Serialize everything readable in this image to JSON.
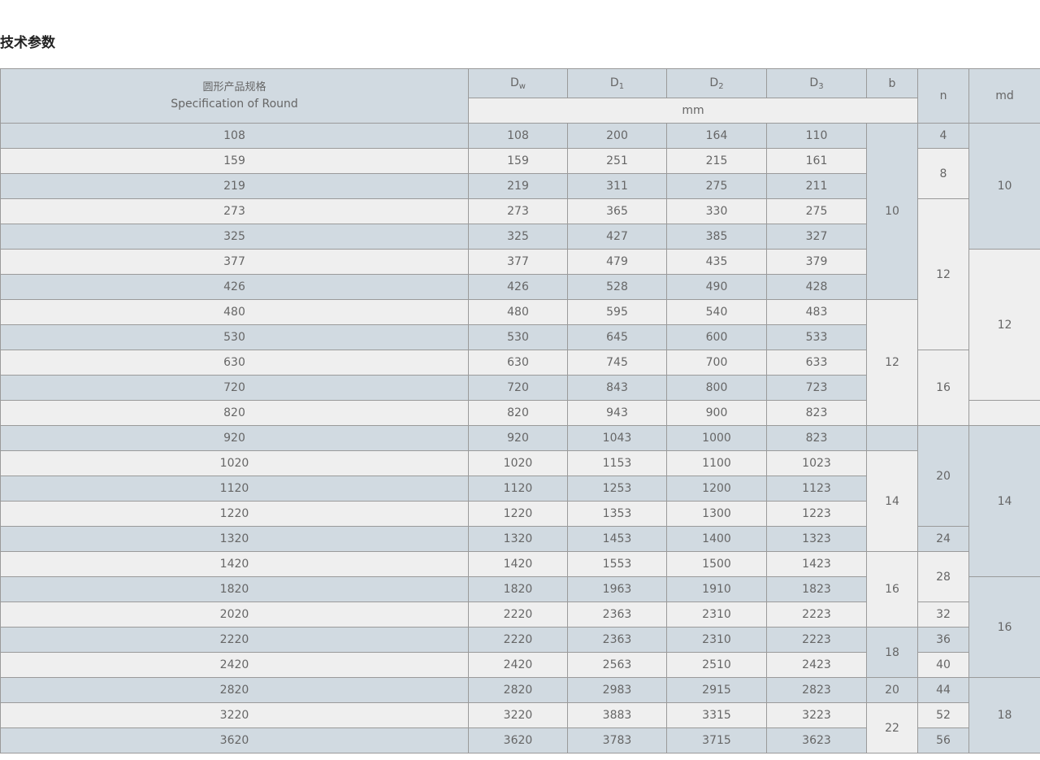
{
  "title": "技术参数",
  "header": {
    "spec_cn": "圆形产品规格",
    "spec_en": "Specification of Round",
    "cols": [
      {
        "base": "D",
        "sub": "w"
      },
      {
        "base": "D",
        "sub": "1"
      },
      {
        "base": "D",
        "sub": "2"
      },
      {
        "base": "D",
        "sub": "3"
      },
      {
        "base": "b",
        "sub": ""
      }
    ],
    "n": "n",
    "md": "md",
    "unit": "mm"
  },
  "rows": [
    [
      "108",
      "108",
      "200",
      "164",
      "110"
    ],
    [
      "159",
      "159",
      "251",
      "215",
      "161"
    ],
    [
      "219",
      "219",
      "311",
      "275",
      "211"
    ],
    [
      "273",
      "273",
      "365",
      "330",
      "275"
    ],
    [
      "325",
      "325",
      "427",
      "385",
      "327"
    ],
    [
      "377",
      "377",
      "479",
      "435",
      "379"
    ],
    [
      "426",
      "426",
      "528",
      "490",
      "428"
    ],
    [
      "480",
      "480",
      "595",
      "540",
      "483"
    ],
    [
      "530",
      "530",
      "645",
      "600",
      "533"
    ],
    [
      "630",
      "630",
      "745",
      "700",
      "633"
    ],
    [
      "720",
      "720",
      "843",
      "800",
      "723"
    ],
    [
      "820",
      "820",
      "943",
      "900",
      "823"
    ],
    [
      "920",
      "920",
      "1043",
      "1000",
      "823"
    ],
    [
      "1020",
      "1020",
      "1153",
      "1100",
      "1023"
    ],
    [
      "1120",
      "1120",
      "1253",
      "1200",
      "1123"
    ],
    [
      "1220",
      "1220",
      "1353",
      "1300",
      "1223"
    ],
    [
      "1320",
      "1320",
      "1453",
      "1400",
      "1323"
    ],
    [
      "1420",
      "1420",
      "1553",
      "1500",
      "1423"
    ],
    [
      "1820",
      "1820",
      "1963",
      "1910",
      "1823"
    ],
    [
      "2020",
      "2220",
      "2363",
      "2310",
      "2223"
    ],
    [
      "2220",
      "2220",
      "2363",
      "2310",
      "2223"
    ],
    [
      "2420",
      "2420",
      "2563",
      "2510",
      "2423"
    ],
    [
      "2820",
      "2820",
      "2983",
      "2915",
      "2823"
    ],
    [
      "3220",
      "3220",
      "3883",
      "3315",
      "3223"
    ],
    [
      "3620",
      "3620",
      "3783",
      "3715",
      "3623"
    ]
  ],
  "merged": {
    "b": [
      {
        "v": "10",
        "span": 7
      },
      {
        "v": "12",
        "span": 5
      },
      {
        "v": "",
        "span": 1
      },
      {
        "v": "14",
        "span": 4
      },
      {
        "v": "16",
        "span": 3
      },
      {
        "v": "18",
        "span": 2
      },
      {
        "v": "20",
        "span": 1
      },
      {
        "v": "22",
        "span": 2
      }
    ],
    "n": [
      {
        "v": "4",
        "span": 1
      },
      {
        "v": "8",
        "span": 2
      },
      {
        "v": "12",
        "span": 6
      },
      {
        "v": "16",
        "span": 3
      },
      {
        "v": "20",
        "span": 4
      },
      {
        "v": "24",
        "span": 1
      },
      {
        "v": "28",
        "span": 2
      },
      {
        "v": "32",
        "span": 1
      },
      {
        "v": "36",
        "span": 1
      },
      {
        "v": "40",
        "span": 1
      },
      {
        "v": "44",
        "span": 1
      },
      {
        "v": "52",
        "span": 1
      },
      {
        "v": "56",
        "span": 1
      }
    ],
    "md": [
      {
        "v": "10",
        "span": 5
      },
      {
        "v": "12",
        "span": 6
      },
      {
        "v": "",
        "span": 1
      },
      {
        "v": "14",
        "span": 6
      },
      {
        "v": "16",
        "span": 4
      },
      {
        "v": "18",
        "span": 3
      }
    ]
  },
  "colors": {
    "row_alt_a": "#d1dae1",
    "row_alt_b": "#efefef",
    "border": "#9a9a9a",
    "text": "#666666"
  }
}
